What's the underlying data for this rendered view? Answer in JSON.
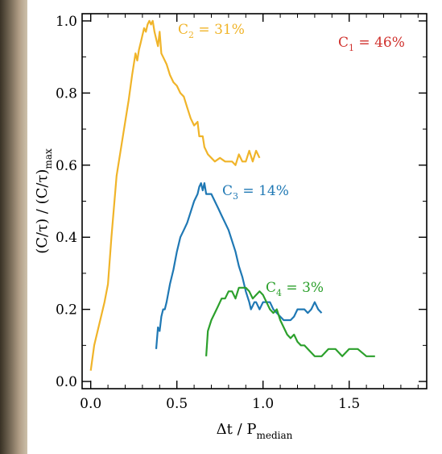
{
  "colors": {
    "background": "#ffffff",
    "axes": "#000000",
    "c1": "#d0312d",
    "c2": "#f0b429",
    "c3": "#1f78b4",
    "c4": "#2ca02c"
  },
  "chart_data": {
    "type": "line",
    "xlabel": {
      "main": "Δt / P",
      "sub": "median"
    },
    "ylabel": {
      "part1": "(C/τ) / (C/τ)",
      "sub": "max"
    },
    "xlim": [
      -0.05,
      1.95
    ],
    "ylim": [
      -0.02,
      1.02
    ],
    "xticks": [
      0.0,
      0.5,
      1.0,
      1.5
    ],
    "xtick_labels": [
      "0.0",
      "0.5",
      "1.0",
      "1.5"
    ],
    "yticks": [
      0.0,
      0.2,
      0.4,
      0.6,
      0.8,
      1.0
    ],
    "ytick_labels": [
      "0.0",
      "0.2",
      "0.4",
      "0.6",
      "0.8",
      "1.0"
    ],
    "grid": false,
    "annotations": [
      {
        "id": "c1",
        "base": "C",
        "sub": "1",
        "rest": " = 46%"
      },
      {
        "id": "c2",
        "base": "C",
        "sub": "2",
        "rest": " = 31%"
      },
      {
        "id": "c3",
        "base": "C",
        "sub": "3",
        "rest": " = 14%"
      },
      {
        "id": "c4",
        "base": "C",
        "sub": "4",
        "rest": " = 3%"
      }
    ],
    "series": [
      {
        "id": "c2",
        "x": [
          0.0,
          0.02,
          0.05,
          0.08,
          0.1,
          0.12,
          0.15,
          0.18,
          0.2,
          0.22,
          0.24,
          0.26,
          0.27,
          0.28,
          0.29,
          0.3,
          0.31,
          0.32,
          0.33,
          0.34,
          0.35,
          0.36,
          0.37,
          0.38,
          0.39,
          0.4,
          0.41,
          0.42,
          0.44,
          0.46,
          0.48,
          0.5,
          0.52,
          0.54,
          0.56,
          0.58,
          0.6,
          0.62,
          0.63,
          0.65,
          0.66,
          0.68,
          0.7,
          0.72,
          0.75,
          0.78,
          0.8,
          0.82,
          0.84,
          0.86,
          0.88,
          0.9,
          0.92,
          0.94,
          0.96,
          0.98
        ],
        "y": [
          0.03,
          0.1,
          0.16,
          0.22,
          0.27,
          0.4,
          0.57,
          0.66,
          0.72,
          0.78,
          0.85,
          0.91,
          0.89,
          0.92,
          0.94,
          0.96,
          0.98,
          0.97,
          0.99,
          1.0,
          0.99,
          1.0,
          0.97,
          0.95,
          0.93,
          0.97,
          0.91,
          0.9,
          0.88,
          0.85,
          0.83,
          0.82,
          0.8,
          0.79,
          0.76,
          0.73,
          0.71,
          0.72,
          0.68,
          0.68,
          0.65,
          0.63,
          0.62,
          0.61,
          0.62,
          0.61,
          0.61,
          0.61,
          0.6,
          0.63,
          0.61,
          0.61,
          0.64,
          0.61,
          0.64,
          0.62
        ]
      },
      {
        "id": "c3",
        "x": [
          0.38,
          0.39,
          0.4,
          0.41,
          0.42,
          0.43,
          0.44,
          0.46,
          0.48,
          0.5,
          0.52,
          0.54,
          0.56,
          0.58,
          0.6,
          0.62,
          0.63,
          0.64,
          0.65,
          0.66,
          0.67,
          0.68,
          0.7,
          0.72,
          0.74,
          0.76,
          0.78,
          0.8,
          0.82,
          0.84,
          0.86,
          0.88,
          0.9,
          0.92,
          0.93,
          0.94,
          0.95,
          0.96,
          0.98,
          1.0,
          1.02,
          1.04,
          1.06,
          1.08,
          1.1,
          1.12,
          1.14,
          1.16,
          1.18,
          1.2,
          1.22,
          1.24,
          1.26,
          1.28,
          1.3,
          1.32,
          1.34
        ],
        "y": [
          0.09,
          0.15,
          0.14,
          0.18,
          0.2,
          0.2,
          0.22,
          0.27,
          0.31,
          0.36,
          0.4,
          0.42,
          0.44,
          0.47,
          0.5,
          0.52,
          0.54,
          0.55,
          0.53,
          0.55,
          0.52,
          0.52,
          0.52,
          0.5,
          0.48,
          0.46,
          0.44,
          0.42,
          0.39,
          0.36,
          0.32,
          0.29,
          0.25,
          0.22,
          0.2,
          0.21,
          0.22,
          0.22,
          0.2,
          0.22,
          0.22,
          0.22,
          0.2,
          0.19,
          0.18,
          0.17,
          0.17,
          0.17,
          0.18,
          0.2,
          0.2,
          0.2,
          0.19,
          0.2,
          0.22,
          0.2,
          0.19
        ]
      },
      {
        "id": "c4",
        "x": [
          0.67,
          0.68,
          0.7,
          0.72,
          0.74,
          0.76,
          0.78,
          0.8,
          0.82,
          0.84,
          0.86,
          0.88,
          0.9,
          0.92,
          0.94,
          0.96,
          0.98,
          1.0,
          1.02,
          1.04,
          1.06,
          1.08,
          1.1,
          1.12,
          1.14,
          1.16,
          1.18,
          1.2,
          1.22,
          1.24,
          1.26,
          1.28,
          1.3,
          1.34,
          1.38,
          1.42,
          1.46,
          1.5,
          1.55,
          1.6,
          1.65
        ],
        "y": [
          0.07,
          0.14,
          0.17,
          0.19,
          0.21,
          0.23,
          0.23,
          0.25,
          0.25,
          0.23,
          0.26,
          0.26,
          0.26,
          0.25,
          0.23,
          0.24,
          0.25,
          0.24,
          0.22,
          0.2,
          0.19,
          0.2,
          0.17,
          0.15,
          0.13,
          0.12,
          0.13,
          0.11,
          0.1,
          0.1,
          0.09,
          0.08,
          0.07,
          0.07,
          0.09,
          0.09,
          0.07,
          0.09,
          0.09,
          0.07,
          0.07
        ]
      }
    ]
  }
}
